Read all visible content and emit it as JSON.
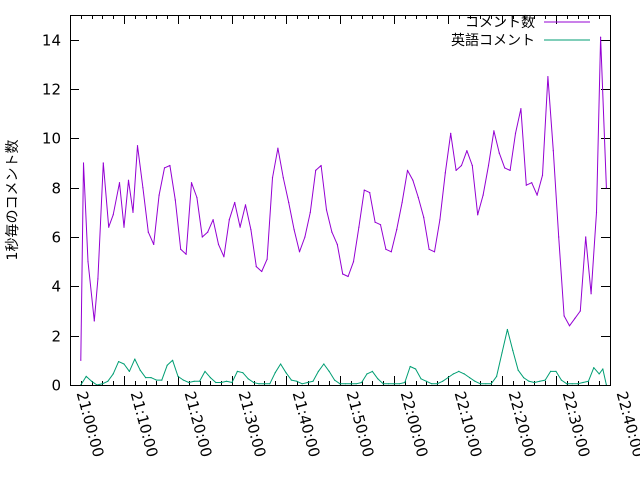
{
  "chart_data": {
    "type": "line",
    "ylabel": "1秒毎のコメント数",
    "ylim": [
      0,
      15
    ],
    "yticks": [
      0,
      2,
      4,
      6,
      8,
      10,
      12,
      14
    ],
    "xlim_minutes": [
      0,
      100
    ],
    "xticks": [
      "21:00:00",
      "21:10:00",
      "21:20:00",
      "21:30:00",
      "21:40:00",
      "21:50:00",
      "22:00:00",
      "22:10:00",
      "22:20:00",
      "22:30:00",
      "22:40:00"
    ],
    "legend_position": "top-right",
    "series": [
      {
        "name": "コメント数",
        "color": "#9400d3",
        "points": [
          [
            "21:02:00",
            1.0
          ],
          [
            "21:02:30",
            9.0
          ],
          [
            "21:03:20",
            5.0
          ],
          [
            "21:04:30",
            2.6
          ],
          [
            "21:05:10",
            4.3
          ],
          [
            "21:06:10",
            9.0
          ],
          [
            "21:07:10",
            6.4
          ],
          [
            "21:08:00",
            6.9
          ],
          [
            "21:09:10",
            8.2
          ],
          [
            "21:10:00",
            6.4
          ],
          [
            "21:10:50",
            8.3
          ],
          [
            "21:11:40",
            7.0
          ],
          [
            "21:12:30",
            9.7
          ],
          [
            "21:13:30",
            8.0
          ],
          [
            "21:14:30",
            6.2
          ],
          [
            "21:15:30",
            5.7
          ],
          [
            "21:16:30",
            7.7
          ],
          [
            "21:17:30",
            8.8
          ],
          [
            "21:18:30",
            8.9
          ],
          [
            "21:19:30",
            7.5
          ],
          [
            "21:20:30",
            5.5
          ],
          [
            "21:21:30",
            5.3
          ],
          [
            "21:22:30",
            8.2
          ],
          [
            "21:23:30",
            7.6
          ],
          [
            "21:24:30",
            6.0
          ],
          [
            "21:25:30",
            6.2
          ],
          [
            "21:26:30",
            6.7
          ],
          [
            "21:27:30",
            5.7
          ],
          [
            "21:28:30",
            5.2
          ],
          [
            "21:29:30",
            6.7
          ],
          [
            "21:30:30",
            7.4
          ],
          [
            "21:31:30",
            6.4
          ],
          [
            "21:32:30",
            7.3
          ],
          [
            "21:33:30",
            6.3
          ],
          [
            "21:34:30",
            4.8
          ],
          [
            "21:35:30",
            4.6
          ],
          [
            "21:36:30",
            5.1
          ],
          [
            "21:37:30",
            8.4
          ],
          [
            "21:38:30",
            9.6
          ],
          [
            "21:39:30",
            8.4
          ],
          [
            "21:40:30",
            7.4
          ],
          [
            "21:41:30",
            6.3
          ],
          [
            "21:42:30",
            5.4
          ],
          [
            "21:43:30",
            6.0
          ],
          [
            "21:44:30",
            7.0
          ],
          [
            "21:45:30",
            8.7
          ],
          [
            "21:46:30",
            8.9
          ],
          [
            "21:47:30",
            7.1
          ],
          [
            "21:48:30",
            6.2
          ],
          [
            "21:49:30",
            5.7
          ],
          [
            "21:50:30",
            4.5
          ],
          [
            "21:51:30",
            4.4
          ],
          [
            "21:52:30",
            5.0
          ],
          [
            "21:53:30",
            6.4
          ],
          [
            "21:54:30",
            7.9
          ],
          [
            "21:55:30",
            7.8
          ],
          [
            "21:56:30",
            6.6
          ],
          [
            "21:57:30",
            6.5
          ],
          [
            "21:58:30",
            5.5
          ],
          [
            "21:59:30",
            5.4
          ],
          [
            "22:00:30",
            6.3
          ],
          [
            "22:01:30",
            7.4
          ],
          [
            "22:02:30",
            8.7
          ],
          [
            "22:03:30",
            8.3
          ],
          [
            "22:04:30",
            7.6
          ],
          [
            "22:05:30",
            6.8
          ],
          [
            "22:06:30",
            5.5
          ],
          [
            "22:07:30",
            5.4
          ],
          [
            "22:08:30",
            6.7
          ],
          [
            "22:09:30",
            8.6
          ],
          [
            "22:10:30",
            10.2
          ],
          [
            "22:11:30",
            8.7
          ],
          [
            "22:12:30",
            8.9
          ],
          [
            "22:13:30",
            9.5
          ],
          [
            "22:14:30",
            8.9
          ],
          [
            "22:15:30",
            6.9
          ],
          [
            "22:16:30",
            7.7
          ],
          [
            "22:17:30",
            8.9
          ],
          [
            "22:18:30",
            10.3
          ],
          [
            "22:19:30",
            9.4
          ],
          [
            "22:20:30",
            8.8
          ],
          [
            "22:21:30",
            8.7
          ],
          [
            "22:22:30",
            10.2
          ],
          [
            "22:23:30",
            11.2
          ],
          [
            "22:24:30",
            8.1
          ],
          [
            "22:25:30",
            8.2
          ],
          [
            "22:26:30",
            7.7
          ],
          [
            "22:27:30",
            8.5
          ],
          [
            "22:28:30",
            12.5
          ],
          [
            "22:29:30",
            9.5
          ],
          [
            "22:30:30",
            6.0
          ],
          [
            "22:31:30",
            2.8
          ],
          [
            "22:32:30",
            2.4
          ],
          [
            "22:33:30",
            2.7
          ],
          [
            "22:34:30",
            3.0
          ],
          [
            "22:35:30",
            6.0
          ],
          [
            "22:36:30",
            3.7
          ],
          [
            "22:37:30",
            7.0
          ],
          [
            "22:38:15",
            14.1
          ],
          [
            "22:39:20",
            8.0
          ]
        ]
      },
      {
        "name": "英語コメント",
        "color": "#009e73",
        "points": [
          [
            "21:02:00",
            0.0
          ],
          [
            "21:03:00",
            0.35
          ],
          [
            "21:04:00",
            0.15
          ],
          [
            "21:05:00",
            0.0
          ],
          [
            "21:06:00",
            0.05
          ],
          [
            "21:07:00",
            0.15
          ],
          [
            "21:08:00",
            0.45
          ],
          [
            "21:09:00",
            0.95
          ],
          [
            "21:10:00",
            0.85
          ],
          [
            "21:11:00",
            0.55
          ],
          [
            "21:12:00",
            1.05
          ],
          [
            "21:13:00",
            0.6
          ],
          [
            "21:14:00",
            0.3
          ],
          [
            "21:15:00",
            0.3
          ],
          [
            "21:16:00",
            0.2
          ],
          [
            "21:17:00",
            0.2
          ],
          [
            "21:18:00",
            0.8
          ],
          [
            "21:19:00",
            1.0
          ],
          [
            "21:20:00",
            0.35
          ],
          [
            "21:21:00",
            0.2
          ],
          [
            "21:22:00",
            0.1
          ],
          [
            "21:23:00",
            0.15
          ],
          [
            "21:24:00",
            0.15
          ],
          [
            "21:25:00",
            0.55
          ],
          [
            "21:26:00",
            0.3
          ],
          [
            "21:27:00",
            0.1
          ],
          [
            "21:28:00",
            0.1
          ],
          [
            "21:29:00",
            0.15
          ],
          [
            "21:30:00",
            0.1
          ],
          [
            "21:31:00",
            0.55
          ],
          [
            "21:32:00",
            0.5
          ],
          [
            "21:33:00",
            0.25
          ],
          [
            "21:34:00",
            0.1
          ],
          [
            "21:35:00",
            0.05
          ],
          [
            "21:36:00",
            0.05
          ],
          [
            "21:37:00",
            0.05
          ],
          [
            "21:38:00",
            0.5
          ],
          [
            "21:39:00",
            0.85
          ],
          [
            "21:40:00",
            0.5
          ],
          [
            "21:41:00",
            0.2
          ],
          [
            "21:42:00",
            0.15
          ],
          [
            "21:43:00",
            0.05
          ],
          [
            "21:44:00",
            0.1
          ],
          [
            "21:45:00",
            0.15
          ],
          [
            "21:46:00",
            0.55
          ],
          [
            "21:47:00",
            0.85
          ],
          [
            "21:48:00",
            0.55
          ],
          [
            "21:49:00",
            0.2
          ],
          [
            "21:50:00",
            0.05
          ],
          [
            "21:51:00",
            0.05
          ],
          [
            "21:52:00",
            0.05
          ],
          [
            "21:53:00",
            0.05
          ],
          [
            "21:54:00",
            0.1
          ],
          [
            "21:55:00",
            0.45
          ],
          [
            "21:56:00",
            0.55
          ],
          [
            "21:57:00",
            0.25
          ],
          [
            "21:58:00",
            0.05
          ],
          [
            "21:59:00",
            0.05
          ],
          [
            "22:00:00",
            0.05
          ],
          [
            "22:01:00",
            0.05
          ],
          [
            "22:02:00",
            0.1
          ],
          [
            "22:03:00",
            0.75
          ],
          [
            "22:04:00",
            0.65
          ],
          [
            "22:05:00",
            0.25
          ],
          [
            "22:06:00",
            0.15
          ],
          [
            "22:07:00",
            0.05
          ],
          [
            "22:08:00",
            0.05
          ],
          [
            "22:09:00",
            0.15
          ],
          [
            "22:10:00",
            0.3
          ],
          [
            "22:11:00",
            0.45
          ],
          [
            "22:12:00",
            0.55
          ],
          [
            "22:13:00",
            0.45
          ],
          [
            "22:14:00",
            0.3
          ],
          [
            "22:15:00",
            0.15
          ],
          [
            "22:16:00",
            0.05
          ],
          [
            "22:17:00",
            0.05
          ],
          [
            "22:18:00",
            0.05
          ],
          [
            "22:19:00",
            0.35
          ],
          [
            "22:20:00",
            1.3
          ],
          [
            "22:21:00",
            2.25
          ],
          [
            "22:22:00",
            1.4
          ],
          [
            "22:23:00",
            0.6
          ],
          [
            "22:24:00",
            0.3
          ],
          [
            "22:25:00",
            0.15
          ],
          [
            "22:26:00",
            0.1
          ],
          [
            "22:27:00",
            0.15
          ],
          [
            "22:28:00",
            0.2
          ],
          [
            "22:29:00",
            0.55
          ],
          [
            "22:30:00",
            0.55
          ],
          [
            "22:31:00",
            0.2
          ],
          [
            "22:32:00",
            0.05
          ],
          [
            "22:33:00",
            0.05
          ],
          [
            "22:34:00",
            0.05
          ],
          [
            "22:35:00",
            0.1
          ],
          [
            "22:36:00",
            0.15
          ],
          [
            "22:37:00",
            0.7
          ],
          [
            "22:38:00",
            0.45
          ],
          [
            "22:38:40",
            0.65
          ],
          [
            "22:39:20",
            0.0
          ]
        ]
      }
    ]
  }
}
